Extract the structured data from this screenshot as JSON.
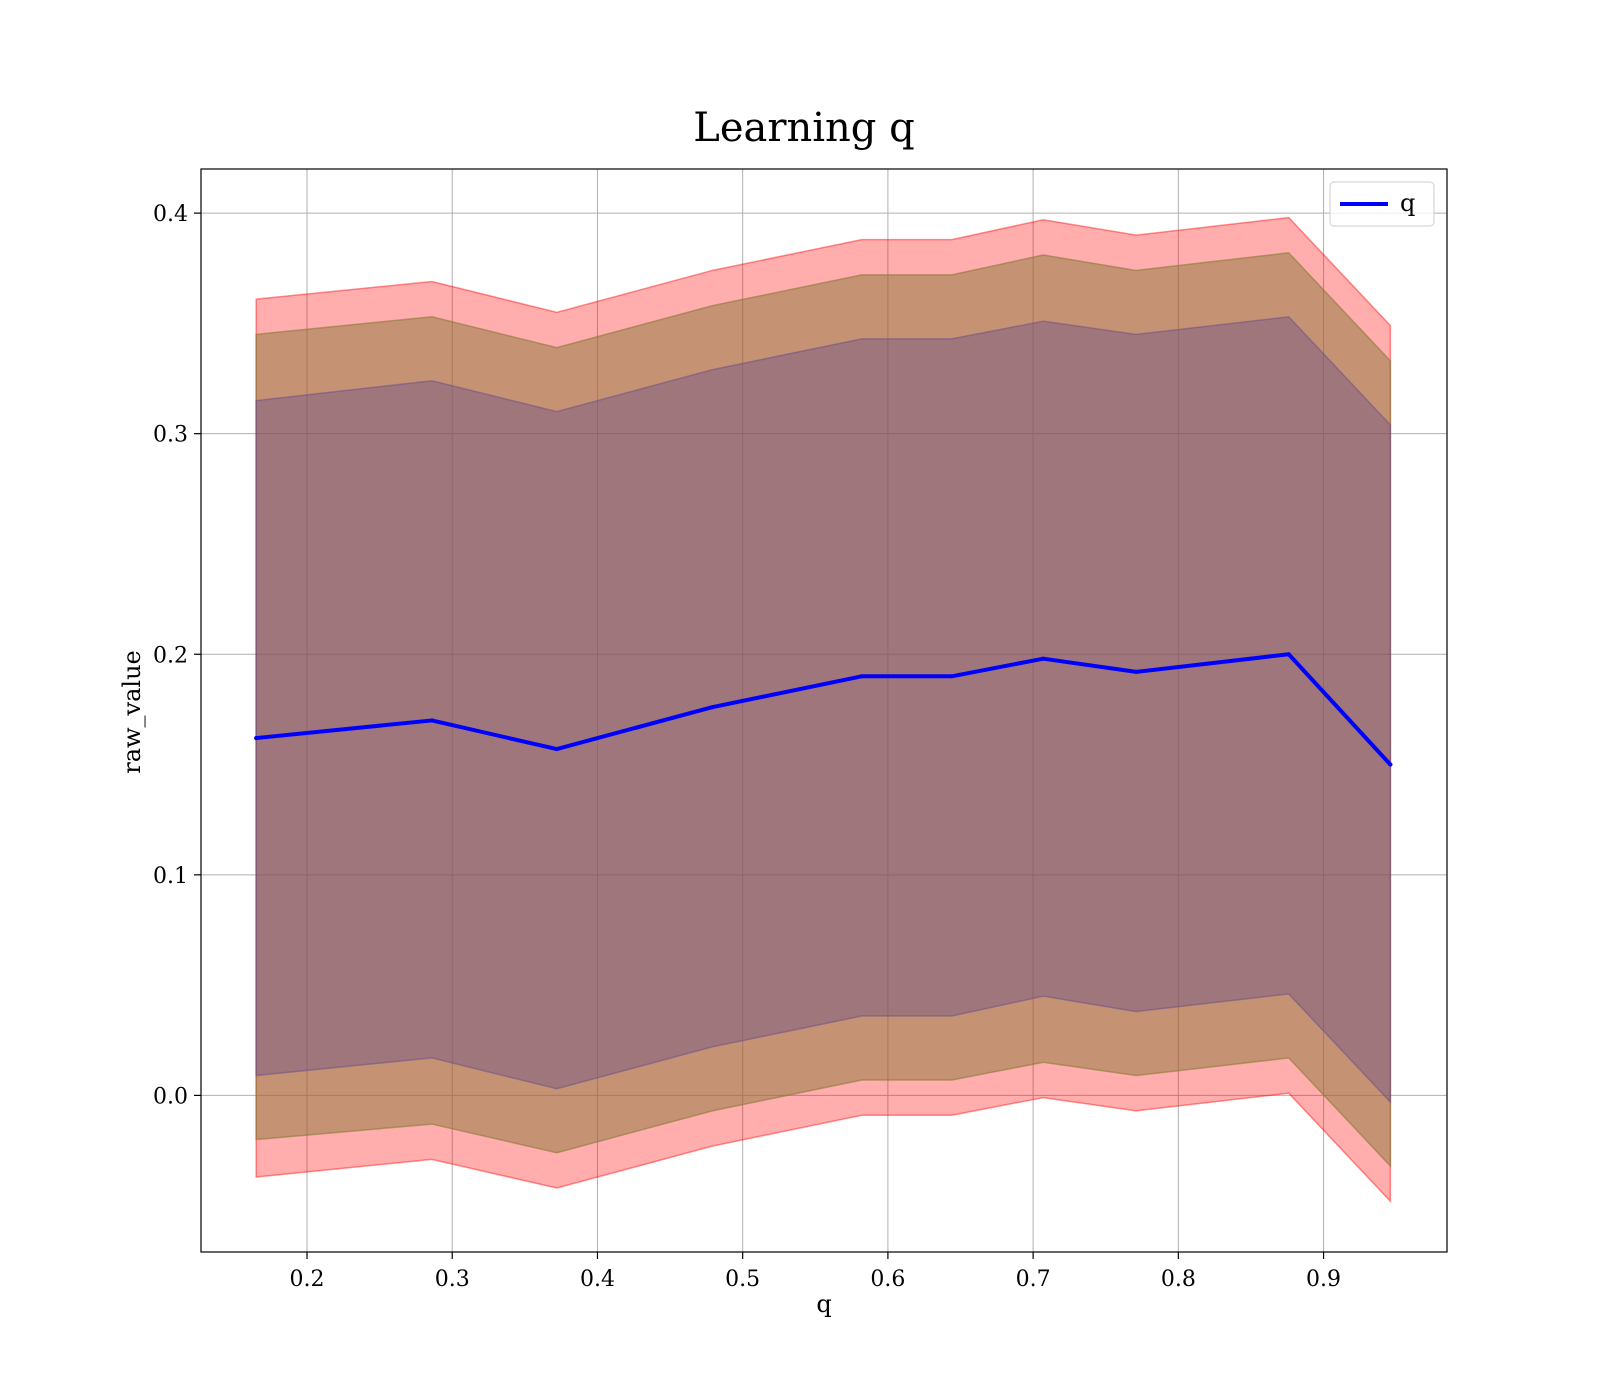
{
  "chart_data": {
    "type": "line",
    "title": "Learning q",
    "xlabel": "q",
    "ylabel": "raw_value",
    "xlim": [
      0.127,
      0.985
    ],
    "ylim": [
      -0.071,
      0.42
    ],
    "xticks": [
      0.2,
      0.3,
      0.4,
      0.5,
      0.6,
      0.7,
      0.8,
      0.9
    ],
    "xtick_labels": [
      "0.2",
      "0.3",
      "0.4",
      "0.5",
      "0.6",
      "0.7",
      "0.8",
      "0.9"
    ],
    "yticks": [
      0.0,
      0.1,
      0.2,
      0.3,
      0.4
    ],
    "ytick_labels": [
      "0.0",
      "0.1",
      "0.2",
      "0.3",
      "0.4"
    ],
    "grid": true,
    "legend": {
      "placement": "top-right",
      "entries": [
        "q"
      ]
    },
    "x": [
      0.165,
      0.286,
      0.372,
      0.479,
      0.582,
      0.644,
      0.707,
      0.771,
      0.876,
      0.946
    ],
    "series": [
      {
        "name": "q",
        "color": "#0000ff",
        "values": [
          0.162,
          0.17,
          0.157,
          0.176,
          0.19,
          0.19,
          0.198,
          0.192,
          0.2,
          0.15
        ]
      }
    ],
    "bands": [
      {
        "fill_color": "#ff0000",
        "fill_opacity": 0.32,
        "lower": [
          -0.037,
          -0.029,
          -0.042,
          -0.023,
          -0.009,
          -0.009,
          -0.001,
          -0.007,
          0.001,
          -0.048
        ],
        "upper": [
          0.361,
          0.369,
          0.355,
          0.374,
          0.388,
          0.388,
          0.397,
          0.39,
          0.398,
          0.349
        ]
      },
      {
        "fill_color": "#8c7a3a",
        "fill_opacity": 0.5,
        "lower": [
          -0.02,
          -0.013,
          -0.026,
          -0.007,
          0.007,
          0.007,
          0.015,
          0.009,
          0.017,
          -0.032
        ],
        "upper": [
          0.345,
          0.353,
          0.339,
          0.358,
          0.372,
          0.372,
          0.381,
          0.374,
          0.382,
          0.333
        ]
      },
      {
        "fill_color": "#6b4f8a",
        "fill_opacity": 0.42,
        "lower": [
          0.009,
          0.017,
          0.003,
          0.022,
          0.036,
          0.036,
          0.045,
          0.038,
          0.046,
          -0.003
        ],
        "upper": [
          0.315,
          0.324,
          0.31,
          0.329,
          0.343,
          0.343,
          0.351,
          0.345,
          0.353,
          0.304
        ]
      }
    ]
  }
}
